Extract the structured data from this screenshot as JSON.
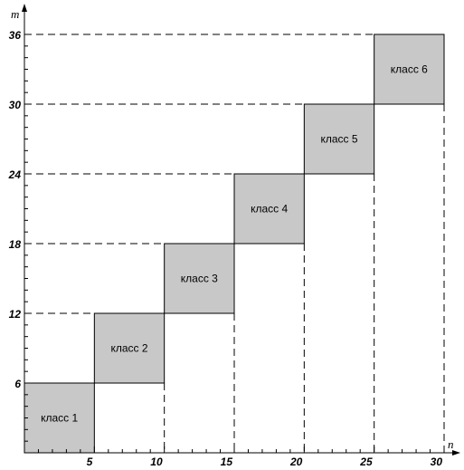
{
  "chart_data": {
    "type": "heatmap",
    "title": "",
    "xlabel": "n",
    "ylabel": "m",
    "xlim": [
      0,
      30
    ],
    "ylim": [
      0,
      36
    ],
    "x_ticks": [
      5,
      10,
      15,
      20,
      25,
      30
    ],
    "y_ticks": [
      6,
      12,
      18,
      24,
      30,
      36
    ],
    "x_tick_labels": [
      "5",
      "10",
      "15",
      "20",
      "25",
      "30"
    ],
    "y_tick_labels": [
      "6",
      "12",
      "18",
      "24",
      "30",
      "36"
    ],
    "grid": false,
    "cell_color": "#c8c8c8",
    "cells": [
      {
        "label": "класс 1",
        "x": [
          0,
          5
        ],
        "y": [
          0,
          6
        ]
      },
      {
        "label": "класс 2",
        "x": [
          5,
          10
        ],
        "y": [
          6,
          12
        ]
      },
      {
        "label": "класс 3",
        "x": [
          10,
          15
        ],
        "y": [
          12,
          18
        ]
      },
      {
        "label": "класс 4",
        "x": [
          15,
          20
        ],
        "y": [
          18,
          24
        ]
      },
      {
        "label": "класс 5",
        "x": [
          20,
          25
        ],
        "y": [
          24,
          30
        ]
      },
      {
        "label": "класс 6",
        "x": [
          25,
          30
        ],
        "y": [
          30,
          36
        ]
      }
    ]
  }
}
